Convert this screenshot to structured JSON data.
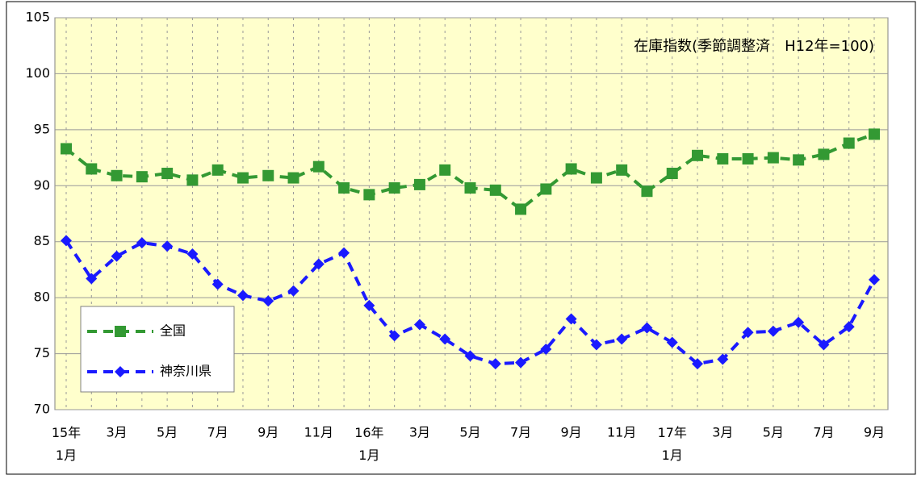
{
  "chart_data": {
    "type": "line",
    "annotation": "在庫指数(季節調整済　H12年=100)",
    "categories": [
      "15年\n1月",
      null,
      "3月",
      null,
      "5月",
      null,
      "7月",
      null,
      "9月",
      null,
      "11月",
      null,
      "16年\n1月",
      null,
      "3月",
      null,
      "5月",
      null,
      "7月",
      null,
      "9月",
      null,
      "11月",
      null,
      "17年\n1月",
      null,
      "3月",
      null,
      "5月",
      null,
      "7月",
      null,
      "9月"
    ],
    "series": [
      {
        "name": "全国",
        "color": "#339933",
        "marker": "square",
        "values": [
          93.3,
          91.5,
          90.9,
          90.8,
          91.1,
          90.5,
          91.4,
          90.7,
          90.9,
          90.7,
          91.7,
          89.8,
          89.2,
          89.8,
          90.1,
          91.4,
          89.8,
          89.6,
          87.9,
          89.7,
          91.5,
          90.7,
          91.4,
          89.5,
          91.1,
          92.7,
          92.4,
          92.4,
          92.5,
          92.3,
          92.8,
          93.8,
          94.6
        ]
      },
      {
        "name": "神奈川県",
        "color": "#1a1aff",
        "marker": "diamond",
        "values": [
          85.1,
          81.7,
          83.7,
          84.9,
          84.6,
          83.9,
          81.2,
          80.2,
          79.7,
          80.6,
          83.0,
          84.0,
          79.3,
          76.6,
          77.6,
          76.3,
          74.8,
          74.1,
          74.2,
          75.4,
          78.1,
          75.8,
          76.3,
          77.3,
          76.0,
          74.1,
          74.5,
          76.9,
          77.0,
          77.8,
          75.8,
          77.4,
          81.6
        ]
      }
    ],
    "ylim": [
      70,
      105
    ],
    "yticks": [
      70,
      75,
      80,
      85,
      90,
      95,
      100,
      105
    ],
    "grid": true
  }
}
